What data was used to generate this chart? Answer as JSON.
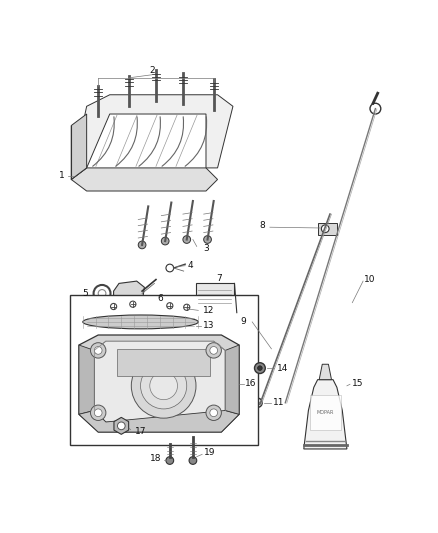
{
  "background_color": "#ffffff",
  "fig_width": 4.38,
  "fig_height": 5.33,
  "dpi": 100,
  "line_color": "#333333",
  "light_gray": "#c8c8c8",
  "mid_gray": "#888888",
  "label_fontsize": 6.5
}
